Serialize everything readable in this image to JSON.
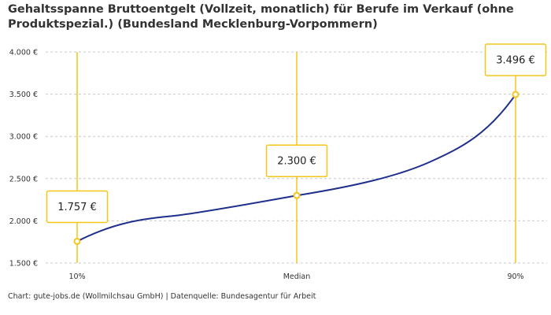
{
  "chart_data": {
    "type": "line",
    "title": "Gehaltsspanne Bruttoentgelt (Vollzeit, monatlich) für Berufe im Verkauf (ohne Produktspezial.) (Bundesland Mecklenburg-Vorpommern)",
    "categories": [
      "10%",
      "Median",
      "90%"
    ],
    "values": [
      1757,
      2300,
      3496
    ],
    "data_labels": [
      "1.757 €",
      "2.300 €",
      "3.496 €"
    ],
    "yticks": [
      1500,
      2000,
      2500,
      3000,
      3500,
      4000
    ],
    "ytick_labels": [
      "1.500 €",
      "2.000 €",
      "2.500 €",
      "3.000 €",
      "3.500 €",
      "4.000 €"
    ],
    "ylim": [
      1500,
      4000
    ],
    "xlabel": "",
    "ylabel": "",
    "grid": "horizontal dashed",
    "colors": {
      "line": "#1f2f8c",
      "accent": "#f5c518"
    }
  },
  "credit": "Chart: gute-jobs.de (Wollmilchsau GmbH) | Datenquelle: Bundesagentur für Arbeit"
}
